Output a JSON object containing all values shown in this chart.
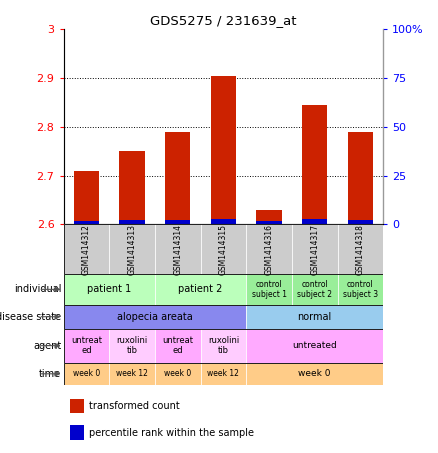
{
  "title": "GDS5275 / 231639_at",
  "samples": [
    "GSM1414312",
    "GSM1414313",
    "GSM1414314",
    "GSM1414315",
    "GSM1414316",
    "GSM1414317",
    "GSM1414318"
  ],
  "transformed_count": [
    2.71,
    2.75,
    2.79,
    2.905,
    2.63,
    2.845,
    2.79
  ],
  "percentile_rank": [
    3.5,
    4.0,
    4.5,
    5.5,
    3.5,
    5.0,
    4.5
  ],
  "y_min": 2.6,
  "y_max": 3.0,
  "y_ticks": [
    2.6,
    2.7,
    2.8,
    2.9,
    3.0
  ],
  "y_tick_labels": [
    "2.6",
    "2.7",
    "2.8",
    "2.9",
    "3"
  ],
  "y2_ticks": [
    0,
    25,
    50,
    75,
    100
  ],
  "y2_tick_labels": [
    "0",
    "25",
    "50",
    "75",
    "100%"
  ],
  "bar_color_red": "#cc2200",
  "bar_color_blue": "#0000cc",
  "bar_width": 0.55,
  "sample_row_color": "#cccccc",
  "individual_data": [
    {
      "label": "patient 1",
      "span": [
        0,
        2
      ],
      "color": "#bbffbb"
    },
    {
      "label": "patient 2",
      "span": [
        2,
        4
      ],
      "color": "#bbffbb"
    },
    {
      "label": "control\nsubject 1",
      "span": [
        4,
        5
      ],
      "color": "#99ee99"
    },
    {
      "label": "control\nsubject 2",
      "span": [
        5,
        6
      ],
      "color": "#99ee99"
    },
    {
      "label": "control\nsubject 3",
      "span": [
        6,
        7
      ],
      "color": "#99ee99"
    }
  ],
  "disease_data": [
    {
      "label": "alopecia areata",
      "span": [
        0,
        4
      ],
      "color": "#8888ee"
    },
    {
      "label": "normal",
      "span": [
        4,
        7
      ],
      "color": "#99ccee"
    }
  ],
  "agent_data": [
    {
      "label": "untreat\ned",
      "span": [
        0,
        1
      ],
      "color": "#ffaaff"
    },
    {
      "label": "ruxolini\ntib",
      "span": [
        1,
        2
      ],
      "color": "#ffccff"
    },
    {
      "label": "untreat\ned",
      "span": [
        2,
        3
      ],
      "color": "#ffaaff"
    },
    {
      "label": "ruxolini\ntib",
      "span": [
        3,
        4
      ],
      "color": "#ffccff"
    },
    {
      "label": "untreated",
      "span": [
        4,
        7
      ],
      "color": "#ffaaff"
    }
  ],
  "time_data": [
    {
      "label": "week 0",
      "span": [
        0,
        1
      ],
      "color": "#ffcc88"
    },
    {
      "label": "week 12",
      "span": [
        1,
        2
      ],
      "color": "#ffcc88"
    },
    {
      "label": "week 0",
      "span": [
        2,
        3
      ],
      "color": "#ffcc88"
    },
    {
      "label": "week 12",
      "span": [
        3,
        4
      ],
      "color": "#ffcc88"
    },
    {
      "label": "week 0",
      "span": [
        4,
        7
      ],
      "color": "#ffcc88"
    }
  ],
  "row_labels": [
    "individual",
    "disease state",
    "agent",
    "time"
  ],
  "legend_items": [
    {
      "label": "transformed count",
      "color": "#cc2200"
    },
    {
      "label": "percentile rank within the sample",
      "color": "#0000cc"
    }
  ]
}
